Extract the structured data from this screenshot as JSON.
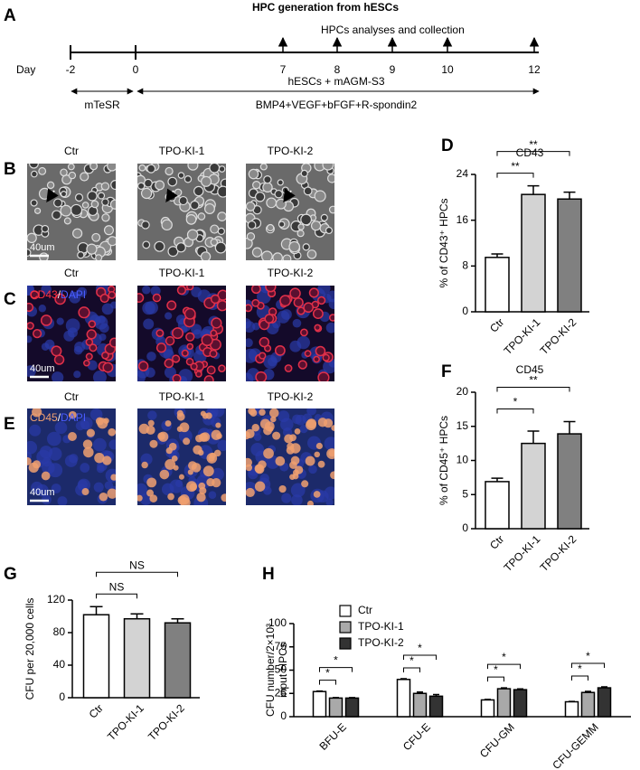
{
  "panels": {
    "labels": [
      "A",
      "B",
      "C",
      "D",
      "E",
      "F",
      "G",
      "H"
    ]
  },
  "timeline": {
    "title": "HPC generation from hESCs",
    "day_label": "Day",
    "days": [
      "-2",
      "0",
      "7",
      "8",
      "9",
      "10",
      "12"
    ],
    "collection": "HPCs analyses and collection",
    "coculture": "hESCs + mAGM-S3",
    "media": [
      "mTeSR",
      "BMP4+VEGF+bFGF+R-spondin2"
    ]
  },
  "images": {
    "B": {
      "titles": [
        "Ctr",
        "TPO-KI-1",
        "TPO-KI-2"
      ],
      "scale": "40um"
    },
    "C": {
      "titles": [
        "Ctr",
        "TPO-KI-1",
        "TPO-KI-2"
      ],
      "stain": [
        "CD43",
        "/",
        "DAPI"
      ],
      "scale": "40um"
    },
    "E": {
      "titles": [
        "Ctr",
        "TPO-KI-1",
        "TPO-KI-2"
      ],
      "stain": [
        "CD45",
        "/",
        "DAPI"
      ],
      "scale": "40um"
    }
  },
  "chart_data": [
    {
      "type": "bar",
      "title": "CD43",
      "ylabel": [
        "% of CD43⁺ HPCs"
      ],
      "categories": [
        "Ctr",
        "TPO-KI-1",
        "TPO-KI-2"
      ],
      "values": [
        9.5,
        20.5,
        19.7
      ],
      "errors": [
        0.6,
        1.5,
        1.2
      ],
      "colors": [
        "#ffffff",
        "#d3d3d3",
        "#808080"
      ],
      "ylim": [
        0,
        24
      ],
      "yticks": [
        0,
        8,
        16,
        24
      ],
      "significance": [
        "**",
        "**"
      ]
    },
    {
      "type": "bar",
      "title": "CD45",
      "ylabel": [
        "% of CD45⁺ HPCs"
      ],
      "categories": [
        "Ctr",
        "TPO-KI-1",
        "TPO-KI-2"
      ],
      "values": [
        6.9,
        12.5,
        13.9
      ],
      "errors": [
        0.5,
        1.8,
        1.8
      ],
      "colors": [
        "#ffffff",
        "#d3d3d3",
        "#808080"
      ],
      "ylim": [
        0,
        20
      ],
      "yticks": [
        0,
        5,
        10,
        15,
        20
      ],
      "significance": [
        "*",
        "**"
      ]
    },
    {
      "type": "bar",
      "ylabel": [
        "CFU per 20,000 cells"
      ],
      "categories": [
        "Ctr",
        "TPO-KI-1",
        "TPO-KI-2"
      ],
      "values": [
        102,
        97,
        92
      ],
      "errors": [
        10,
        6,
        5
      ],
      "colors": [
        "#ffffff",
        "#d3d3d3",
        "#808080"
      ],
      "ylim": [
        0,
        120
      ],
      "yticks": [
        0,
        40,
        80,
        120
      ],
      "significance": [
        "NS",
        "NS"
      ]
    },
    {
      "type": "grouped_bar",
      "ylabel": [
        "CFU number/2×10³",
        "input HPCs"
      ],
      "categories": [
        "BFU-E",
        "CFU-E",
        "CFU-GM",
        "CFU-GEMM"
      ],
      "series": [
        {
          "name": "Ctr",
          "color": "#ffffff",
          "values": [
            27,
            40,
            18,
            16
          ],
          "errors": [
            0.6,
            0.8,
            0.6,
            0.4
          ]
        },
        {
          "name": "TPO-KI-1",
          "color": "#a9a9a9",
          "values": [
            20,
            25,
            30,
            26
          ],
          "errors": [
            0.5,
            1.5,
            1.0,
            1.2
          ]
        },
        {
          "name": "TPO-KI-2",
          "color": "#333333",
          "values": [
            20,
            22,
            29,
            31
          ],
          "errors": [
            0.5,
            1.8,
            0.8,
            1.0
          ]
        }
      ],
      "ylim": [
        0,
        100
      ],
      "yticks": [
        0,
        25,
        50,
        75,
        100
      ],
      "significance": [
        [
          "*",
          "*"
        ],
        [
          "*",
          "*"
        ],
        [
          "*",
          "*"
        ],
        [
          "*",
          "*"
        ]
      ]
    }
  ]
}
